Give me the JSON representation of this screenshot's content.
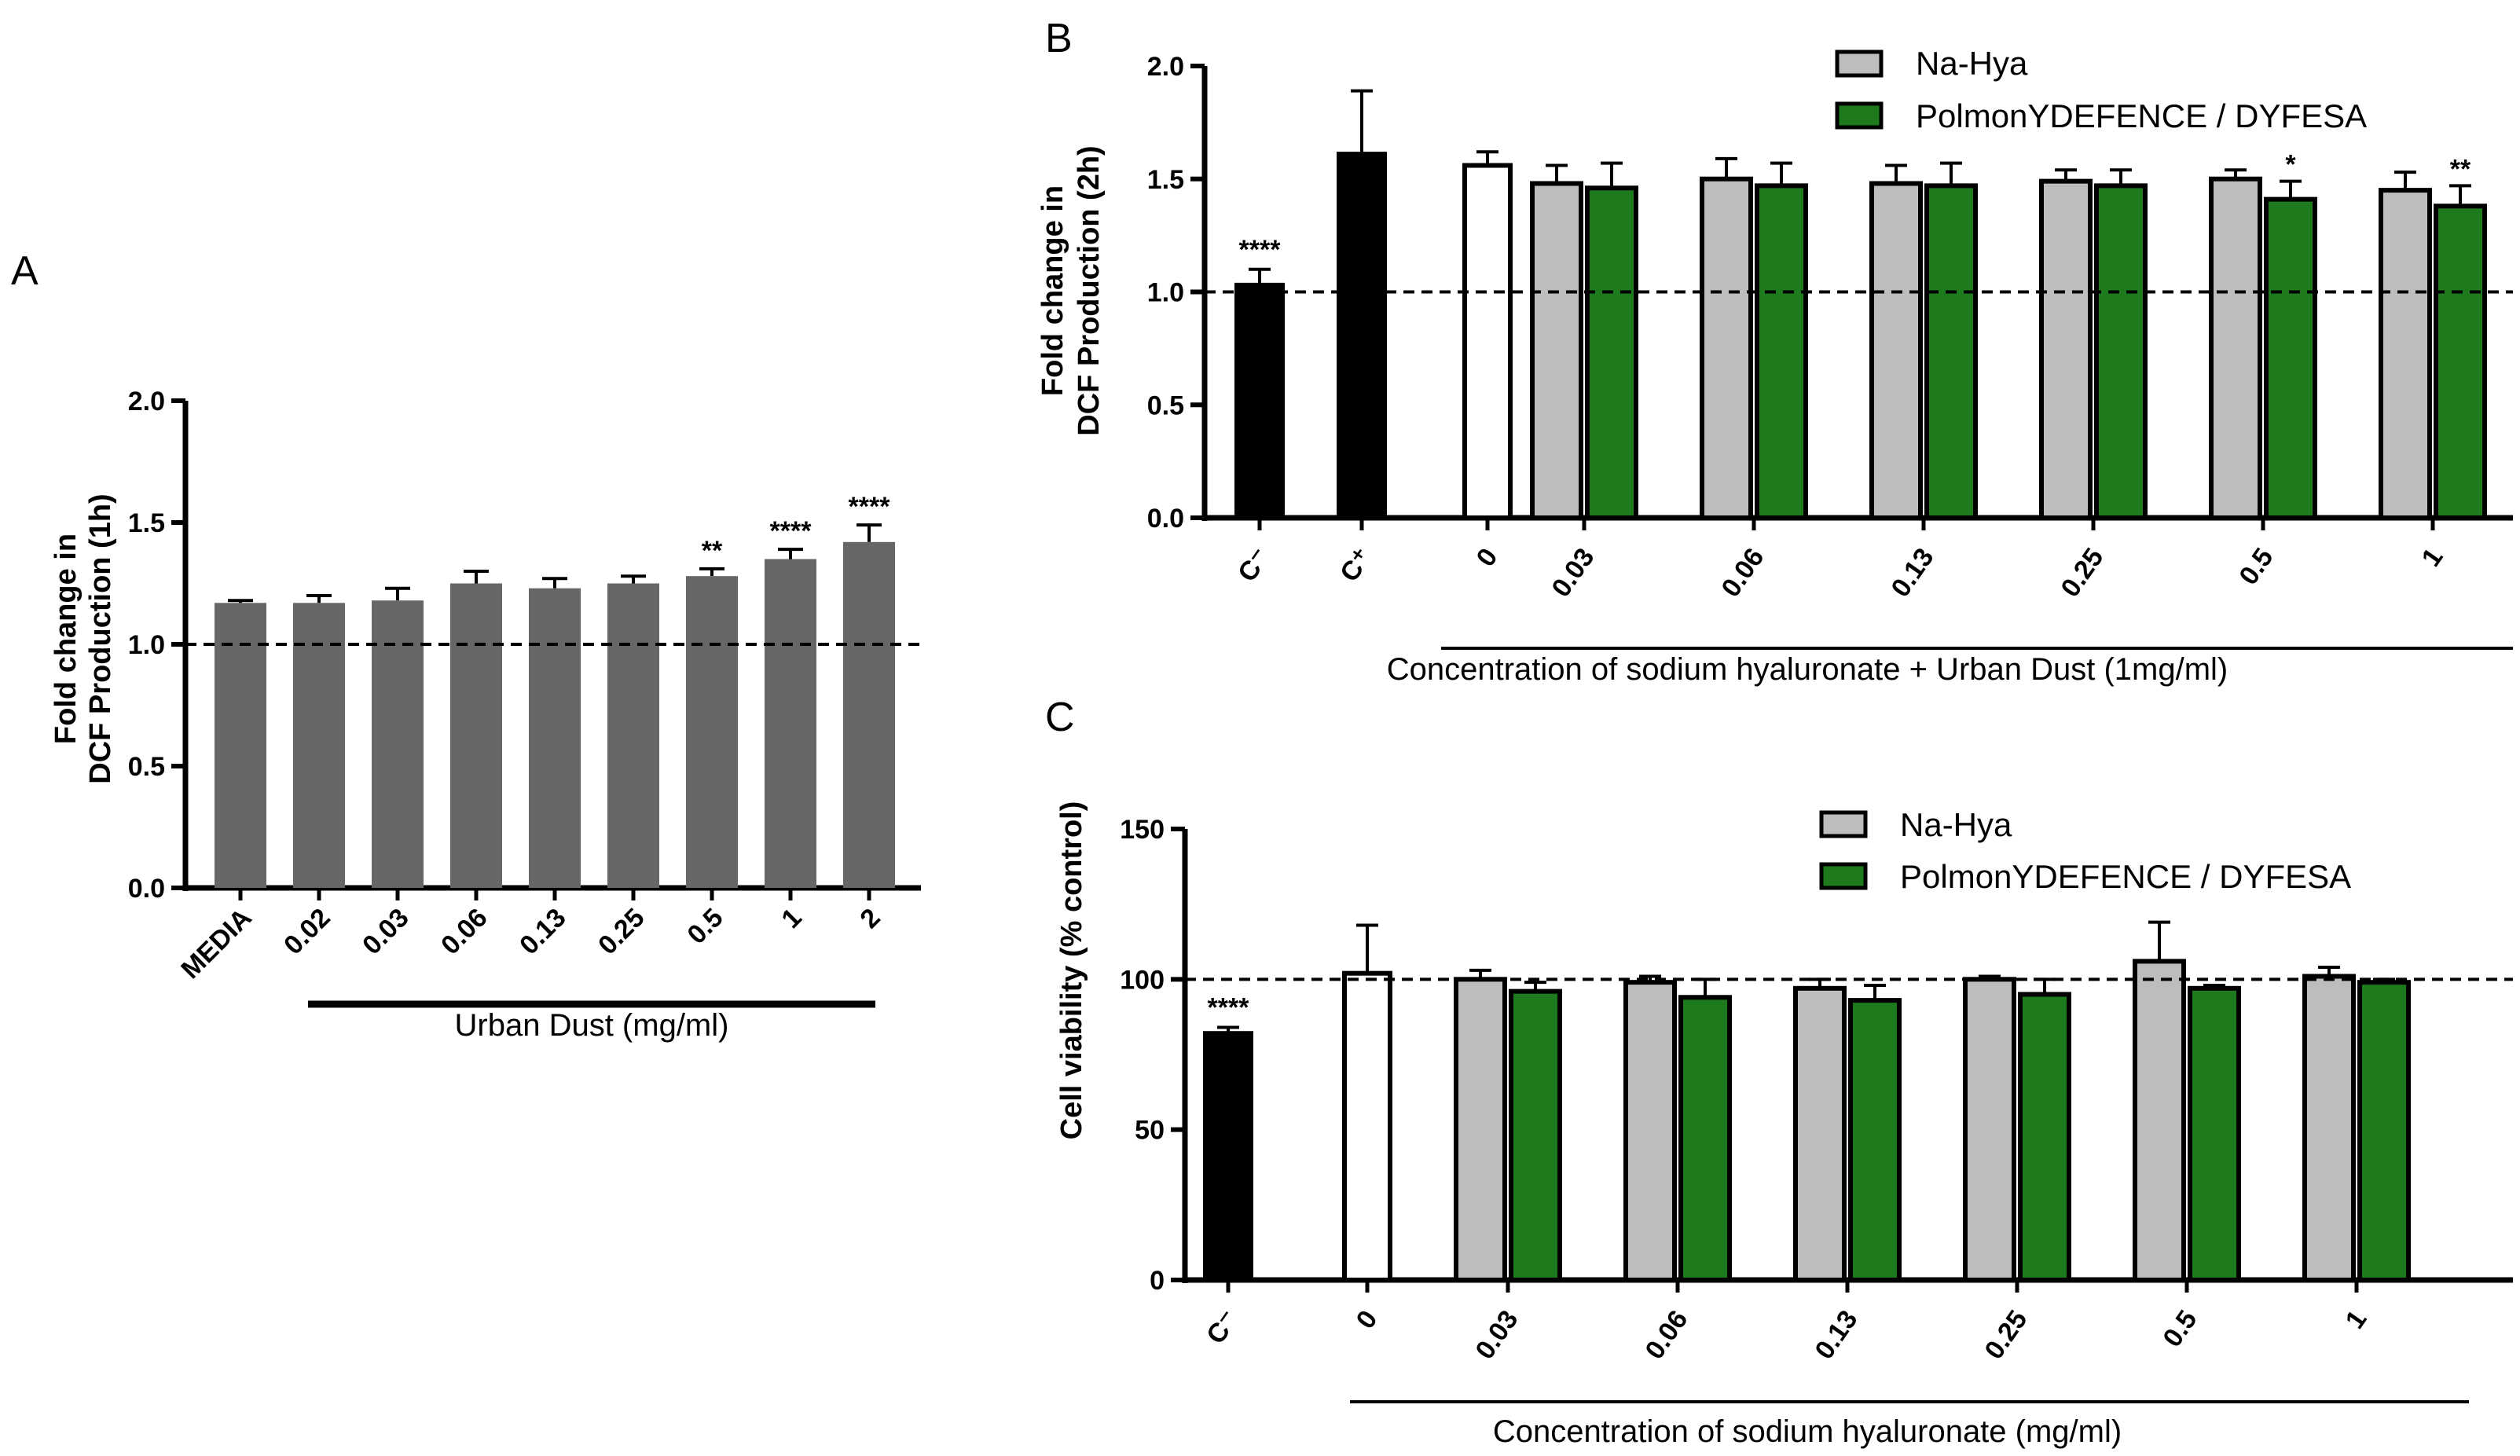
{
  "colors": {
    "dark_gray": "#666666",
    "light_gray": "#bdbdbd",
    "green": "#1d7a1d",
    "black": "#000000",
    "white": "#ffffff"
  },
  "chart_data": [
    {
      "id": "A",
      "panel": "A",
      "type": "bar",
      "ylabel_line1": "Fold change in",
      "ylabel_line2": "DCF Production (1h)",
      "xlabel": "Urban Dust (mg/ml)",
      "ylim": [
        0,
        2.0
      ],
      "yticks": [
        "0.0",
        "0.5",
        "1.0",
        "1.5",
        "2.0"
      ],
      "reference_line": 1.0,
      "categories": [
        "MEDIA",
        "0.02",
        "0.03",
        "0.06",
        "0.13",
        "0.25",
        "0.5",
        "1",
        "2"
      ],
      "series": [
        {
          "name": "Urban Dust",
          "color": "#666666",
          "values": [
            1.17,
            1.17,
            1.18,
            1.25,
            1.23,
            1.25,
            1.28,
            1.35,
            1.42
          ],
          "errors": [
            0.01,
            0.03,
            0.05,
            0.05,
            0.04,
            0.03,
            0.03,
            0.04,
            0.07
          ],
          "significance": [
            "",
            "",
            "",
            "",
            "",
            "",
            "**",
            "****",
            "****"
          ]
        }
      ]
    },
    {
      "id": "B",
      "panel": "B",
      "type": "bar",
      "ylabel_line1": "Fold change in",
      "ylabel_line2": "DCF Production (2h)",
      "xlabel": "Concentration of sodium hyaluronate + Urban Dust (1mg/ml)",
      "ylim": [
        0,
        2.0
      ],
      "yticks": [
        "0.0",
        "0.5",
        "1.0",
        "1.5",
        "2.0"
      ],
      "reference_line": 1.0,
      "legend": [
        "Na-Hya",
        "PolmonYDEFENCE / DYFESA"
      ],
      "control_categories": [
        "C⁻",
        "C⁺",
        "0"
      ],
      "controls": [
        {
          "label": "C⁻",
          "value": 1.03,
          "error": 0.07,
          "fill": "#000000",
          "significance": "****"
        },
        {
          "label": "C⁺",
          "value": 1.61,
          "error": 0.28,
          "fill": "#000000",
          "significance": ""
        },
        {
          "label": "0",
          "value": 1.56,
          "error": 0.06,
          "fill": "#ffffff",
          "significance": ""
        }
      ],
      "categories": [
        "0.03",
        "0.06",
        "0.13",
        "0.25",
        "0.5",
        "1"
      ],
      "series": [
        {
          "name": "Na-Hya",
          "color": "#bdbdbd",
          "values": [
            1.48,
            1.5,
            1.48,
            1.49,
            1.5,
            1.45
          ],
          "errors": [
            0.08,
            0.09,
            0.08,
            0.05,
            0.04,
            0.08
          ],
          "significance": [
            "",
            "",
            "",
            "",
            "",
            ""
          ]
        },
        {
          "name": "PolmonYDEFENCE / DYFESA",
          "color": "#1d7a1d",
          "values": [
            1.46,
            1.47,
            1.47,
            1.47,
            1.41,
            1.38
          ],
          "errors": [
            0.11,
            0.1,
            0.1,
            0.07,
            0.08,
            0.09
          ],
          "significance": [
            "",
            "",
            "",
            "",
            "*",
            "**"
          ]
        }
      ]
    },
    {
      "id": "C",
      "panel": "C",
      "type": "bar",
      "ylabel_line1": "Cell viability (% control)",
      "ylabel_line2": "",
      "xlabel": "Concentration of sodium hyaluronate (mg/ml)",
      "ylim": [
        0,
        150
      ],
      "yticks": [
        "0",
        "50",
        "100",
        "150"
      ],
      "reference_line": 100,
      "legend": [
        "Na-Hya",
        "PolmonYDEFENCE / DYFESA"
      ],
      "control_categories": [
        "C⁻",
        "0"
      ],
      "controls": [
        {
          "label": "C⁻",
          "value": 82,
          "error": 2,
          "fill": "#000000",
          "significance": "****"
        },
        {
          "label": "0",
          "value": 102,
          "error": 16,
          "fill": "#ffffff",
          "significance": ""
        }
      ],
      "categories": [
        "0.03",
        "0.06",
        "0.13",
        "0.25",
        "0.5",
        "1"
      ],
      "series": [
        {
          "name": "Na-Hya",
          "color": "#bdbdbd",
          "values": [
            100,
            99,
            97,
            100,
            106,
            101
          ],
          "errors": [
            3,
            2,
            3,
            1,
            13,
            3
          ],
          "significance": [
            "",
            "",
            "",
            "",
            "",
            ""
          ]
        },
        {
          "name": "PolmonYDEFENCE / DYFESA",
          "color": "#1d7a1d",
          "values": [
            96,
            94,
            93,
            95,
            97,
            99
          ],
          "errors": [
            3,
            6,
            5,
            5,
            1,
            1
          ],
          "significance": [
            "",
            "",
            "",
            "",
            "",
            ""
          ]
        }
      ]
    }
  ]
}
